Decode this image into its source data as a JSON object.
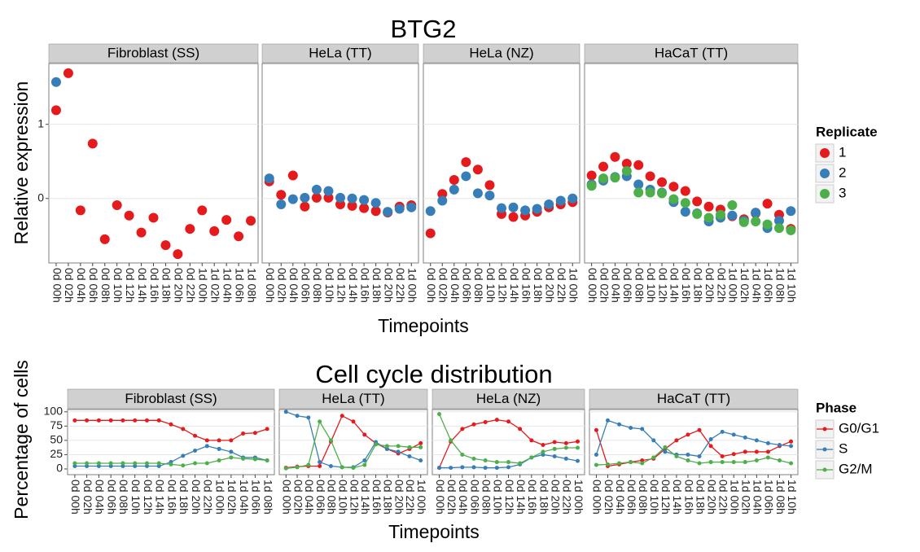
{
  "chart_data": [
    {
      "type": "scatter",
      "title": "BTG2",
      "ylabel": "Relative expression",
      "xlabel": "Timepoints",
      "legend_title": "Replicate",
      "ylim": [
        -0.87,
        1.82
      ],
      "yticks": [
        0,
        1
      ],
      "grid": true,
      "facets": [
        {
          "name": "Fibroblast (SS)",
          "categories": [
            "0d 00h",
            "0d 02h",
            "0d 04h",
            "0d 06h",
            "0d 08h",
            "0d 10h",
            "0d 12h",
            "0d 14h",
            "0d 16h",
            "0d 18h",
            "0d 20h",
            "0d 22h",
            "1d 00h",
            "1d 02h",
            "1d 04h",
            "1d 06h",
            "1d 08h"
          ],
          "series": [
            {
              "name": "1",
              "color": "#e41a1c",
              "values": [
                1.19,
                1.69,
                -0.16,
                0.74,
                -0.55,
                -0.09,
                -0.23,
                -0.46,
                -0.26,
                -0.63,
                -0.75,
                -0.41,
                -0.16,
                -0.44,
                -0.29,
                -0.51,
                -0.3
              ]
            },
            {
              "name": "2",
              "color": "#377eb8",
              "values": [
                1.57,
                null,
                null,
                null,
                null,
                null,
                null,
                null,
                null,
                null,
                null,
                null,
                null,
                null,
                null,
                null,
                null
              ]
            }
          ]
        },
        {
          "name": "HeLa (TT)",
          "categories": [
            "0d 00h",
            "0d 02h",
            "0d 04h",
            "0d 06h",
            "0d 08h",
            "0d 10h",
            "0d 12h",
            "0d 14h",
            "0d 16h",
            "0d 18h",
            "0d 20h",
            "0d 22h",
            "1d 00h"
          ],
          "series": [
            {
              "name": "1",
              "color": "#e41a1c",
              "values": [
                0.23,
                0.05,
                0.31,
                -0.11,
                0.01,
                0.01,
                -0.08,
                -0.1,
                -0.13,
                -0.17,
                -0.19,
                -0.11,
                -0.09
              ]
            },
            {
              "name": "2",
              "color": "#377eb8",
              "values": [
                0.27,
                -0.08,
                -0.01,
                0.01,
                0.12,
                0.1,
                0.01,
                0.0,
                -0.02,
                -0.06,
                -0.18,
                -0.14,
                -0.12
              ]
            }
          ]
        },
        {
          "name": "HeLa (NZ)",
          "categories": [
            "0d 00h",
            "0d 02h",
            "0d 04h",
            "0d 06h",
            "0d 08h",
            "0d 10h",
            "0d 12h",
            "0d 14h",
            "0d 16h",
            "0d 18h",
            "0d 20h",
            "0d 22h",
            "1d 00h"
          ],
          "series": [
            {
              "name": "1",
              "color": "#e41a1c",
              "values": [
                -0.47,
                0.06,
                0.25,
                0.49,
                0.39,
                0.18,
                -0.21,
                -0.25,
                -0.23,
                -0.18,
                -0.12,
                -0.08,
                -0.05
              ]
            },
            {
              "name": "2",
              "color": "#377eb8",
              "values": [
                -0.17,
                -0.03,
                0.12,
                0.3,
                0.07,
                0.04,
                -0.13,
                -0.12,
                -0.16,
                -0.14,
                -0.08,
                -0.03,
                0.0
              ]
            }
          ]
        },
        {
          "name": "HaCaT (TT)",
          "categories": [
            "0d 00h",
            "0d 02h",
            "0d 04h",
            "0d 06h",
            "0d 08h",
            "0d 10h",
            "0d 12h",
            "0d 14h",
            "0d 16h",
            "0d 18h",
            "0d 20h",
            "0d 22h",
            "1d 00h",
            "1d 02h",
            "1d 04h",
            "1d 06h",
            "1d 08h",
            "1d 10h"
          ],
          "series": [
            {
              "name": "1",
              "color": "#e41a1c",
              "values": [
                0.31,
                0.43,
                0.56,
                0.47,
                0.45,
                0.3,
                0.22,
                0.16,
                0.1,
                -0.04,
                -0.11,
                -0.15,
                -0.24,
                -0.28,
                -0.2,
                -0.07,
                -0.22,
                -0.41
              ]
            },
            {
              "name": "2",
              "color": "#377eb8",
              "values": [
                0.19,
                0.24,
                0.29,
                0.3,
                0.19,
                0.12,
                0.08,
                -0.05,
                -0.18,
                -0.2,
                -0.31,
                -0.26,
                -0.23,
                -0.3,
                -0.19,
                -0.4,
                -0.3,
                -0.17
              ]
            },
            {
              "name": "3",
              "color": "#4daf4a",
              "values": [
                0.17,
                0.27,
                0.28,
                0.37,
                0.08,
                0.08,
                0.07,
                -0.01,
                -0.06,
                -0.21,
                -0.26,
                -0.22,
                -0.09,
                -0.32,
                -0.31,
                -0.35,
                -0.4,
                -0.43
              ]
            }
          ]
        }
      ]
    },
    {
      "type": "line",
      "title": "Cell cycle distribution",
      "ylabel": "Percentage of cells",
      "xlabel": "Timepoints",
      "legend_title": "Phase",
      "ylim": [
        -10,
        104
      ],
      "yticks": [
        0,
        25,
        50,
        75,
        100
      ],
      "grid": true,
      "facets": [
        {
          "name": "Fibroblast (SS)",
          "categories": [
            "0d 00h",
            "0d 02h",
            "0d 04h",
            "0d 06h",
            "0d 08h",
            "0d 10h",
            "0d 12h",
            "0d 14h",
            "0d 16h",
            "0d 18h",
            "0d 20h",
            "0d 22h",
            "1d 00h",
            "1d 02h",
            "1d 04h",
            "1d 06h",
            "1d 08h"
          ],
          "series": [
            {
              "name": "G0/G1",
              "color": "#e41a1c",
              "values": [
                85,
                85,
                85,
                85,
                85,
                85,
                85,
                85,
                78,
                70,
                58,
                50,
                50,
                50,
                62,
                63,
                70
              ]
            },
            {
              "name": "S",
              "color": "#377eb8",
              "values": [
                5,
                5,
                5,
                5,
                5,
                5,
                5,
                5,
                12,
                23,
                32,
                40,
                35,
                30,
                20,
                20,
                15
              ]
            },
            {
              "name": "G2/M",
              "color": "#4daf4a",
              "values": [
                10,
                10,
                10,
                10,
                10,
                10,
                10,
                10,
                8,
                6,
                10,
                10,
                15,
                20,
                18,
                17,
                15
              ]
            }
          ]
        },
        {
          "name": "HeLa (TT)",
          "categories": [
            "0d 00h",
            "0d 02h",
            "0d 04h",
            "0d 06h",
            "0d 08h",
            "0d 10h",
            "0d 12h",
            "0d 14h",
            "0d 16h",
            "0d 18h",
            "0d 20h",
            "0d 22h",
            "1d 00h"
          ],
          "series": [
            {
              "name": "G0/G1",
              "color": "#e41a1c",
              "values": [
                2,
                4,
                5,
                5,
                48,
                93,
                83,
                60,
                45,
                35,
                27,
                35,
                45
              ]
            },
            {
              "name": "S",
              "color": "#377eb8",
              "values": [
                100,
                93,
                90,
                12,
                5,
                3,
                3,
                15,
                47,
                35,
                30,
                22,
                15
              ]
            },
            {
              "name": "G2/M",
              "color": "#4daf4a",
              "values": [
                1,
                3,
                7,
                83,
                50,
                3,
                2,
                7,
                43,
                40,
                40,
                38,
                38
              ]
            }
          ]
        },
        {
          "name": "HeLa (NZ)",
          "categories": [
            "0d 00h",
            "0d 02h",
            "0d 04h",
            "0d 06h",
            "0d 08h",
            "0d 10h",
            "0d 12h",
            "0d 14h",
            "0d 16h",
            "0d 18h",
            "0d 20h",
            "0d 22h",
            "1d 00h"
          ],
          "series": [
            {
              "name": "G0/G1",
              "color": "#e41a1c",
              "values": [
                2,
                48,
                70,
                78,
                82,
                86,
                83,
                70,
                50,
                42,
                47,
                45,
                48
              ]
            },
            {
              "name": "S",
              "color": "#377eb8",
              "values": [
                2,
                2,
                3,
                3,
                2,
                2,
                3,
                8,
                20,
                25,
                22,
                18,
                14
              ]
            },
            {
              "name": "G2/M",
              "color": "#4daf4a",
              "values": [
                96,
                50,
                25,
                18,
                15,
                12,
                12,
                10,
                20,
                30,
                35,
                37,
                37
              ]
            }
          ]
        },
        {
          "name": "HaCaT (TT)",
          "categories": [
            "0d 00h",
            "0d 02h",
            "0d 04h",
            "0d 06h",
            "0d 08h",
            "0d 10h",
            "0d 12h",
            "0d 14h",
            "0d 16h",
            "0d 18h",
            "0d 20h",
            "0d 22h",
            "1d 00h",
            "1d 02h",
            "1d 04h",
            "1d 06h",
            "1d 08h",
            "1d 10h"
          ],
          "series": [
            {
              "name": "G0/G1",
              "color": "#e41a1c",
              "values": [
                68,
                5,
                8,
                12,
                15,
                18,
                35,
                50,
                60,
                68,
                40,
                22,
                26,
                30,
                30,
                30,
                40,
                48
              ]
            },
            {
              "name": "S",
              "color": "#377eb8",
              "values": [
                25,
                85,
                78,
                72,
                70,
                50,
                30,
                25,
                25,
                22,
                52,
                65,
                60,
                55,
                50,
                45,
                42,
                40
              ]
            },
            {
              "name": "G2/M",
              "color": "#4daf4a",
              "values": [
                7,
                8,
                10,
                12,
                10,
                20,
                38,
                22,
                15,
                10,
                12,
                12,
                12,
                12,
                15,
                20,
                15,
                10
              ]
            }
          ]
        }
      ]
    }
  ]
}
